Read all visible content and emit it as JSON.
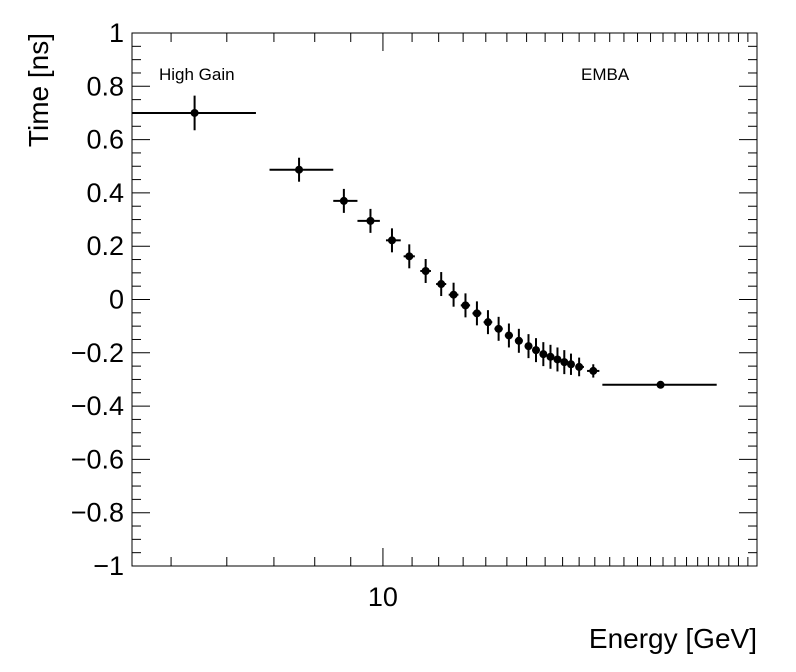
{
  "chart_data": {
    "type": "scatter",
    "xlabel": "Energy [GeV]",
    "ylabel": "Time [ns]",
    "x_scale": "log",
    "xlim": [
      4.4,
      34
    ],
    "ylim": [
      -1,
      1
    ],
    "x_tick_labels": [
      "10"
    ],
    "y_tick_labels": [
      "1",
      "0.8",
      "0.6",
      "0.4",
      "0.2",
      "0",
      "−0.2",
      "−0.4",
      "−0.6",
      "−0.8",
      "−1"
    ],
    "y_ticks": [
      1,
      0.8,
      0.6,
      0.4,
      0.2,
      0,
      -0.2,
      -0.4,
      -0.6,
      -0.8,
      -1
    ],
    "grid": false,
    "annotations": [
      "High Gain",
      "EMBA"
    ],
    "marker_color": "#000000",
    "points": [
      {
        "x": 5.4,
        "xlo": 4.4,
        "xhi": 6.6,
        "y": 0.7,
        "yerr": 0.065
      },
      {
        "x": 7.6,
        "xlo": 6.9,
        "xhi": 8.5,
        "y": 0.487,
        "yerr": 0.045
      },
      {
        "x": 8.8,
        "xlo": 8.5,
        "xhi": 9.2,
        "y": 0.37,
        "yerr": 0.045
      },
      {
        "x": 9.6,
        "xlo": 9.2,
        "xhi": 9.9,
        "y": 0.295,
        "yerr": 0.045
      },
      {
        "x": 10.3,
        "xlo": 10.1,
        "xhi": 10.6,
        "y": 0.222,
        "yerr": 0.045
      },
      {
        "x": 10.9,
        "xlo": 10.7,
        "xhi": 11.1,
        "y": 0.162,
        "yerr": 0.045
      },
      {
        "x": 11.5,
        "xlo": 11.3,
        "xhi": 11.7,
        "y": 0.107,
        "yerr": 0.045
      },
      {
        "x": 12.1,
        "xlo": 11.9,
        "xhi": 12.3,
        "y": 0.058,
        "yerr": 0.045
      },
      {
        "x": 12.6,
        "xlo": 12.4,
        "xhi": 12.8,
        "y": 0.018,
        "yerr": 0.045
      },
      {
        "x": 13.1,
        "xlo": 12.9,
        "xhi": 13.3,
        "y": -0.022,
        "yerr": 0.045
      },
      {
        "x": 13.6,
        "xlo": 13.4,
        "xhi": 13.8,
        "y": -0.052,
        "yerr": 0.045
      },
      {
        "x": 14.1,
        "xlo": 13.9,
        "xhi": 14.3,
        "y": -0.085,
        "yerr": 0.045
      },
      {
        "x": 14.6,
        "xlo": 14.4,
        "xhi": 14.8,
        "y": -0.11,
        "yerr": 0.045
      },
      {
        "x": 15.1,
        "xlo": 14.9,
        "xhi": 15.3,
        "y": -0.135,
        "yerr": 0.045
      },
      {
        "x": 15.6,
        "xlo": 15.4,
        "xhi": 15.8,
        "y": -0.155,
        "yerr": 0.045
      },
      {
        "x": 16.1,
        "xlo": 15.9,
        "xhi": 16.3,
        "y": -0.175,
        "yerr": 0.045
      },
      {
        "x": 16.5,
        "xlo": 16.3,
        "xhi": 16.7,
        "y": -0.19,
        "yerr": 0.045
      },
      {
        "x": 16.9,
        "xlo": 16.7,
        "xhi": 17.1,
        "y": -0.205,
        "yerr": 0.045
      },
      {
        "x": 17.3,
        "xlo": 17.1,
        "xhi": 17.5,
        "y": -0.215,
        "yerr": 0.045
      },
      {
        "x": 17.7,
        "xlo": 17.5,
        "xhi": 17.9,
        "y": -0.225,
        "yerr": 0.045
      },
      {
        "x": 18.1,
        "xlo": 17.9,
        "xhi": 18.3,
        "y": -0.235,
        "yerr": 0.045
      },
      {
        "x": 18.5,
        "xlo": 18.3,
        "xhi": 18.7,
        "y": -0.243,
        "yerr": 0.04
      },
      {
        "x": 19.0,
        "xlo": 18.8,
        "xhi": 19.3,
        "y": -0.253,
        "yerr": 0.035
      },
      {
        "x": 19.9,
        "xlo": 19.5,
        "xhi": 20.3,
        "y": -0.268,
        "yerr": 0.025
      },
      {
        "x": 24.8,
        "xlo": 20.5,
        "xhi": 29.8,
        "y": -0.32,
        "yerr": 0.0
      }
    ]
  }
}
